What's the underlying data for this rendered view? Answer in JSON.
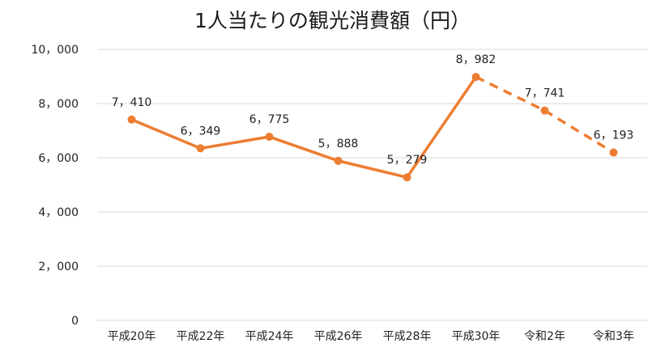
{
  "chart_data": {
    "type": "line",
    "title": "1人当たりの観光消費額（円）",
    "xlabel": "",
    "ylabel": "",
    "categories": [
      "平成20年",
      "平成22年",
      "平成24年",
      "平成26年",
      "平成28年",
      "平成30年",
      "令和2年",
      "令和3年"
    ],
    "values": [
      7410,
      6349,
      6775,
      5888,
      5279,
      8982,
      7741,
      6193
    ],
    "value_labels": [
      "7，410",
      "6，349",
      "6，775",
      "5，888",
      "5，279",
      "8，982",
      "7，741",
      "6，193"
    ],
    "ylim": [
      0,
      10000
    ],
    "yticks": [
      0,
      2000,
      4000,
      6000,
      8000,
      10000
    ],
    "ytick_labels": [
      "0",
      "2，000",
      "4，000",
      "6，000",
      "8，000",
      "10，000"
    ],
    "dashed_from_index": 5,
    "grid": true,
    "legend": "none",
    "color": "#ED7D31",
    "grid_color": "#d9d9d9"
  }
}
